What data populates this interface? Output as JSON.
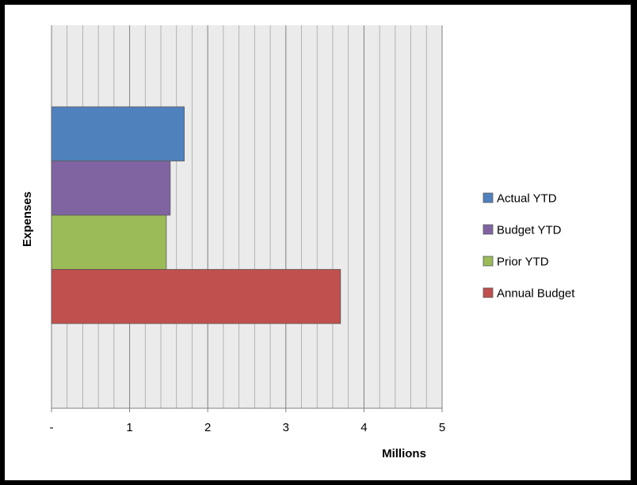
{
  "chart_data": {
    "type": "bar",
    "orientation": "horizontal",
    "title": "",
    "xlabel": "Millions",
    "ylabel": "Expenses",
    "xlim": [
      0,
      5
    ],
    "x_ticks": [
      0,
      1,
      2,
      3,
      4,
      5
    ],
    "x_tick_labels": [
      "-",
      "1",
      "2",
      "3",
      "4",
      "5"
    ],
    "grid": "vertical minor gridlines",
    "legend_position": "right",
    "categories": [
      "Expenses"
    ],
    "series": [
      {
        "name": "Actual YTD",
        "values": [
          1.7
        ],
        "color": "#4F81BD"
      },
      {
        "name": "Budget YTD",
        "values": [
          1.52
        ],
        "color": "#8064A2"
      },
      {
        "name": "Prior YTD",
        "values": [
          1.47
        ],
        "color": "#9BBB59"
      },
      {
        "name": "Annual Budget",
        "values": [
          3.7
        ],
        "color": "#C0504D"
      }
    ],
    "plot_background": "#EBEBEB"
  }
}
